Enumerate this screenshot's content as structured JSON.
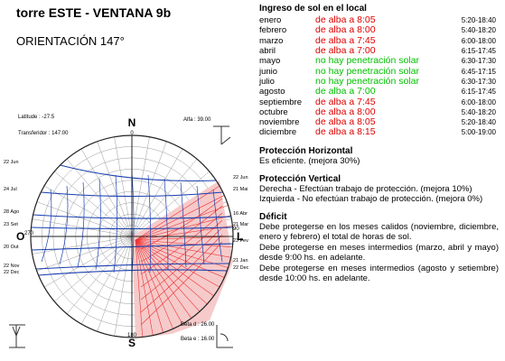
{
  "header": {
    "title": "torre ESTE - VENTANA 9b",
    "subtitle": "ORIENTACIÓN 147°"
  },
  "diagram": {
    "latitude": "Latitude : -27.5",
    "transferidor": "Transferidor : 147.00",
    "alfa": "Alfa : 39.00",
    "beta_d": "Beta d : 26.00",
    "beta_e": "Beta e : 16.00",
    "north": "N",
    "north_deg": "0",
    "south": "S",
    "south_deg": "180",
    "west": "O",
    "west_deg": "270",
    "east": "L",
    "east_deg": "90",
    "left_dates": [
      "22 Jun",
      "24 Jul",
      "28 Ago",
      "23 Set",
      "20 Out",
      "22 Nov",
      "22 Dec"
    ],
    "right_dates": [
      "22 Jun",
      "21 Mai",
      "16 Abr",
      "21 Mar",
      "23 Fev",
      "21 Jan",
      "22 Dec"
    ]
  },
  "table": {
    "title": "Ingreso de sol en el local",
    "rows": [
      [
        "enero",
        "de alba a 8:05",
        "5:20-18:40"
      ],
      [
        "febrero",
        "de alba a 8:00",
        "5:40-18:20"
      ],
      [
        "marzo",
        "de alba a 7:45",
        "6:00-18:00"
      ],
      [
        "abril",
        "de alba a 7:00",
        "6:15-17:45"
      ],
      [
        "mayo",
        "no hay penetración solar",
        "6:30-17:30"
      ],
      [
        "junio",
        "no hay penetración solar",
        "6:45-17:15"
      ],
      [
        "julio",
        "no hay penetración solar",
        "6:30-17:30"
      ],
      [
        "agosto",
        "de alba a 7:00",
        "6:15-17:45"
      ],
      [
        "septiembre",
        "de alba a 7:45",
        "6:00-18:00"
      ],
      [
        "octubre",
        "de alba a 8:00",
        "5:40-18:20"
      ],
      [
        "noviembre",
        "de alba a 8:05",
        "5:20-18:40"
      ],
      [
        "diciembre",
        "de alba a 8:15",
        "5:00-19:00"
      ]
    ]
  },
  "horizontal": {
    "title": "Protección Horizontal",
    "text": "Es eficiente. (mejora 30%)"
  },
  "vertical": {
    "title": "Protección Vertical",
    "lines": [
      "Derecha - Efectúan trabajo de protección. (mejora 10%)",
      "Izquierda - No efectúan trabajo de protección. (mejora 0%)"
    ]
  },
  "deficit": {
    "title": "Déficit",
    "paragraphs": [
      "Debe protegerse en los meses calidos (noviembre, diciembre, enero y febrero) el total de horas de sol.",
      "Debe protegerse en meses intermedios (marzo, abril y mayo) desde 9:00 hs. en adelante.",
      "Debe protegerse en meses intermedios (agosto y setiembre) desde 10:00 hs. en adelante."
    ]
  }
}
